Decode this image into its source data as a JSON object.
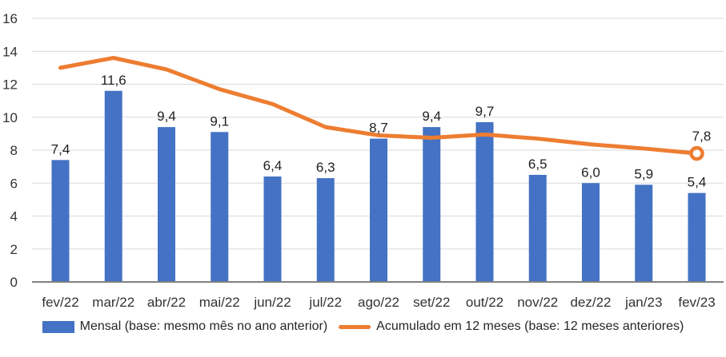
{
  "chart_data": {
    "type": "bar",
    "subtype": "combo-bar-line",
    "title": "",
    "xlabel": "",
    "ylabel": "",
    "ylim": [
      0,
      16
    ],
    "yticks": [
      0,
      2,
      4,
      6,
      8,
      10,
      12,
      14,
      16
    ],
    "grid": true,
    "legend_position": "bottom",
    "categories": [
      "fev/22",
      "mar/22",
      "abr/22",
      "mai/22",
      "jun/22",
      "jul/22",
      "ago/22",
      "set/22",
      "out/22",
      "nov/22",
      "dez/22",
      "jan/23",
      "fev/23"
    ],
    "series": [
      {
        "name": "Mensal (base: mesmo mês no ano anterior)",
        "type": "bar",
        "color": "#4472C4",
        "values": [
          7.4,
          11.6,
          9.4,
          9.1,
          6.4,
          6.3,
          8.7,
          9.4,
          9.7,
          6.5,
          6.0,
          5.9,
          5.4
        ],
        "labels": [
          "7,4",
          "11,6",
          "9,4",
          "9,1",
          "6,4",
          "6,3",
          "8,7",
          "9,4",
          "9,7",
          "6,5",
          "6,0",
          "5,9",
          "5,4"
        ]
      },
      {
        "name": "Acumulado em 12 meses (base: 12 meses anteriores)",
        "type": "line",
        "color": "#ED7D31",
        "values": [
          13.0,
          13.6,
          12.9,
          11.7,
          10.8,
          9.4,
          8.9,
          8.75,
          8.95,
          8.7,
          8.35,
          8.1,
          7.8
        ],
        "end_label": "7,8",
        "end_marker": "open-circle"
      }
    ],
    "colors": {
      "bar": "#4472C4",
      "line": "#ED7D31",
      "gridline": "#D9D9D9",
      "axis_line": "#808080",
      "tick_text": "#333333",
      "data_label_text": "#1f1f1f",
      "marker_fill": "#ffffff"
    }
  }
}
